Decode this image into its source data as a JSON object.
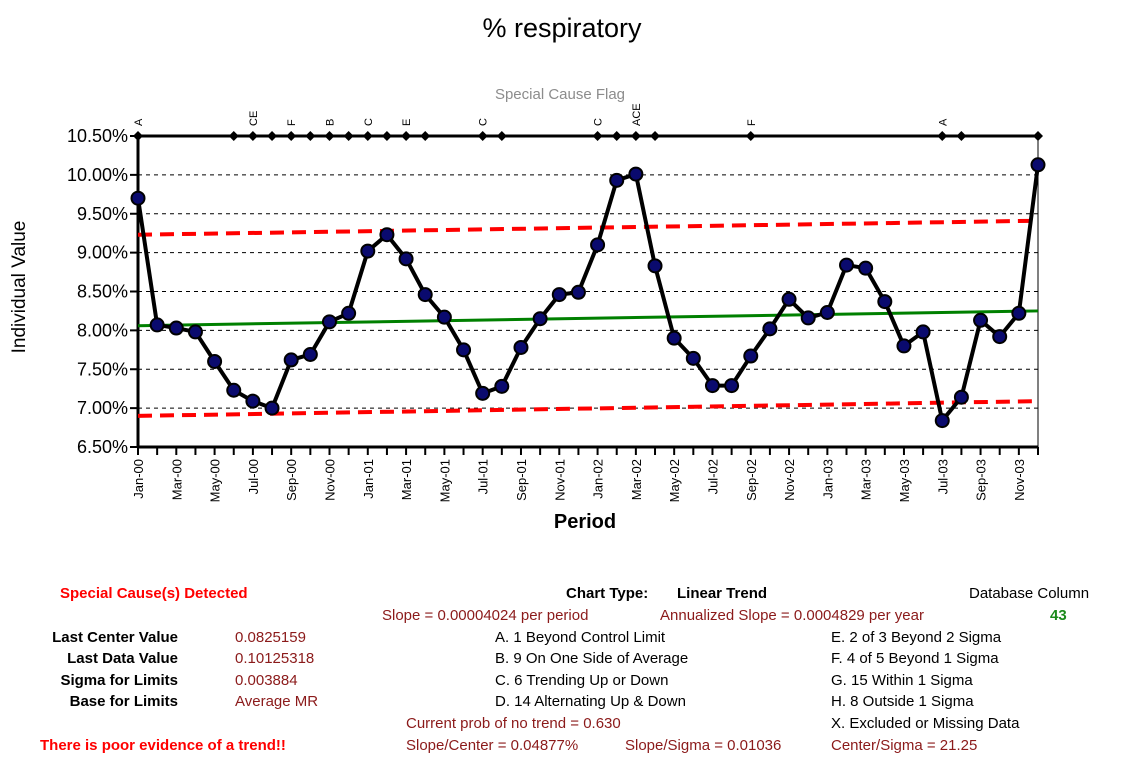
{
  "chart_data": {
    "type": "line",
    "title": "% respiratory",
    "flag_title": "Special Cause Flag",
    "xlabel": "Period",
    "ylabel": "Individual Value",
    "ylim": [
      0.065,
      0.105
    ],
    "yticks": [
      "6.50%",
      "7.00%",
      "7.50%",
      "8.00%",
      "8.50%",
      "9.00%",
      "9.50%",
      "10.00%",
      "10.50%"
    ],
    "x_tick_labels": [
      "Jan-00",
      "Mar-00",
      "May-00",
      "Jul-00",
      "Sep-00",
      "Nov-00",
      "Jan-01",
      "Mar-01",
      "May-01",
      "Jul-01",
      "Sep-01",
      "Nov-01",
      "Jan-02",
      "Mar-02",
      "May-02",
      "Jul-02",
      "Sep-02",
      "Nov-02",
      "Jan-03",
      "Mar-03",
      "May-03",
      "Jul-03",
      "Sep-03",
      "Nov-03"
    ],
    "series": [
      {
        "name": "Individual Value",
        "color": "#000000",
        "marker_color": "#0a0a6e",
        "values": [
          0.097,
          0.0807,
          0.0803,
          0.0798,
          0.076,
          0.0723,
          0.0709,
          0.07,
          0.0762,
          0.0769,
          0.0811,
          0.0822,
          0.0902,
          0.0923,
          0.0892,
          0.0846,
          0.0817,
          0.0775,
          0.0719,
          0.0728,
          0.0778,
          0.0815,
          0.0846,
          0.0849,
          0.091,
          0.0993,
          0.1001,
          0.0883,
          0.079,
          0.0764,
          0.0729,
          0.0729,
          0.0767,
          0.0802,
          0.084,
          0.0816,
          0.0823,
          0.0884,
          0.088,
          0.0837,
          0.078,
          0.0798,
          0.0684,
          0.0714,
          0.0813,
          0.0792,
          0.0822,
          0.1013
        ]
      },
      {
        "name": "Center Line",
        "color": "#008000",
        "values_start_end": [
          0.0806,
          0.0825
        ]
      },
      {
        "name": "Upper Control Limit",
        "color": "#ff0000",
        "dashed": true,
        "values_start_end": [
          0.0923,
          0.0941
        ]
      },
      {
        "name": "Lower Control Limit",
        "color": "#ff0000",
        "dashed": true,
        "values_start_end": [
          0.069,
          0.0709
        ]
      }
    ],
    "flags": [
      {
        "index": 0,
        "label": "A"
      },
      {
        "index": 6,
        "label": "CE"
      },
      {
        "index": 8,
        "label": "F"
      },
      {
        "index": 10,
        "label": "B"
      },
      {
        "index": 12,
        "label": "C"
      },
      {
        "index": 14,
        "label": "E"
      },
      {
        "index": 18,
        "label": "C"
      },
      {
        "index": 24,
        "label": "C"
      },
      {
        "index": 26,
        "label": "ACE"
      },
      {
        "index": 32,
        "label": "F"
      },
      {
        "index": 42,
        "label": "A"
      }
    ],
    "flag_marker_indices": [
      0,
      5,
      6,
      7,
      8,
      9,
      10,
      11,
      12,
      13,
      14,
      15,
      18,
      19,
      24,
      25,
      26,
      27,
      32,
      42,
      43,
      47
    ]
  },
  "footer": {
    "special_cause": "Special Cause(s) Detected",
    "chart_type_label": "Chart Type:",
    "chart_type_value": "Linear Trend",
    "db_column_label": "Database Column",
    "db_column_value": "43",
    "slope": "Slope = 0.00004024 per period",
    "annualized": "Annualized Slope = 0.0004829 per year",
    "last_center_label": "Last Center Value",
    "last_center_value": "0.0825159",
    "last_data_label": "Last Data Value",
    "last_data_value": "0.10125318",
    "sigma_label": "Sigma for Limits",
    "sigma_value": "0.003884",
    "base_label": "Base for Limits",
    "base_value": "Average MR",
    "rule_a": "A.  1 Beyond Control Limit",
    "rule_b": "B.  9 On One Side of Average",
    "rule_c": "C.  6 Trending Up or Down",
    "rule_d": "D.  14 Alternating  Up & Down",
    "rule_e": "E.  2 of 3 Beyond 2 Sigma",
    "rule_f": "F.  4 of 5 Beyond 1 Sigma",
    "rule_g": "G.  15 Within 1 Sigma",
    "rule_h": "H.  8 Outside 1 Sigma",
    "rule_x": "X.  Excluded or Missing Data",
    "prob": "Current prob of no trend = 0.630",
    "trend_msg": "There is poor evidence of a trend!!",
    "slope_center": "Slope/Center = 0.04877%",
    "slope_sigma": "Slope/Sigma = 0.01036",
    "center_sigma": "Center/Sigma = 21.25"
  }
}
